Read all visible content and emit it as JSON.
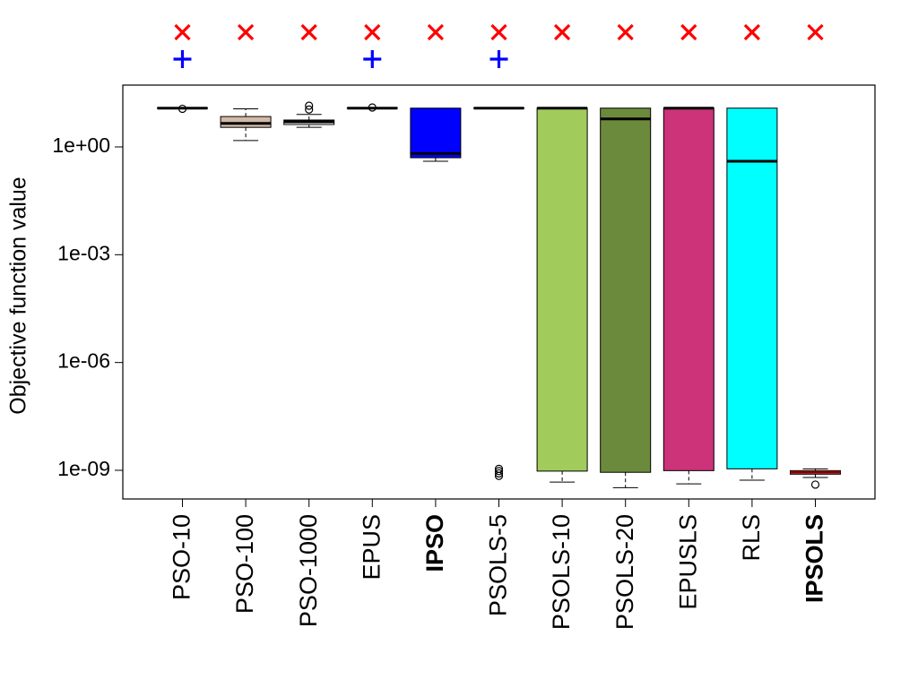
{
  "chart_data": {
    "type": "box",
    "ylabel": "Objective function value",
    "yscale": "log10",
    "y_ticks": [
      {
        "value": 1,
        "label": "1e+00"
      },
      {
        "value": 0.001,
        "label": "1e-03"
      },
      {
        "value": 1e-06,
        "label": "1e-06"
      },
      {
        "value": 1e-09,
        "label": "1e-09"
      }
    ],
    "ylim": [
      2e-10,
      50
    ],
    "grid": false,
    "categories": [
      {
        "name": "PSO-10",
        "bold": false,
        "color": "#ffffff",
        "whisker_low": 12,
        "q1": 12,
        "median": 12,
        "q3": 12,
        "whisker_high": 12,
        "outliers": [
          11.5
        ],
        "markers": [
          "x",
          "+"
        ]
      },
      {
        "name": "PSO-100",
        "bold": false,
        "color": "#d2b9a8",
        "whisker_low": 1.5,
        "q1": 3.5,
        "median": 4.5,
        "q3": 7,
        "whisker_high": 11.5,
        "outliers": [],
        "markers": [
          "x"
        ]
      },
      {
        "name": "PSO-1000",
        "bold": false,
        "color": "#ffffff",
        "whisker_low": 3.5,
        "q1": 4.2,
        "median": 5,
        "q3": 5.6,
        "whisker_high": 8,
        "outliers": [
          11,
          14
        ],
        "markers": [
          "x"
        ]
      },
      {
        "name": "EPUS",
        "bold": false,
        "color": "#ffffff",
        "whisker_low": 12,
        "q1": 12,
        "median": 12,
        "q3": 12,
        "whisker_high": 12,
        "outliers": [
          12.5
        ],
        "markers": [
          "x",
          "+"
        ]
      },
      {
        "name": "IPSO",
        "bold": true,
        "color": "#0000ff",
        "whisker_low": 0.4,
        "q1": 0.5,
        "median": 0.65,
        "q3": 12,
        "whisker_high": 12,
        "outliers": [],
        "markers": [
          "x"
        ]
      },
      {
        "name": "PSOLS-5",
        "bold": false,
        "color": "#ffffff",
        "whisker_low": 12,
        "q1": 12,
        "median": 12,
        "q3": 12,
        "whisker_high": 12,
        "outliers": [
          1.1e-09,
          9.5e-10,
          8.2e-10,
          7e-10
        ],
        "markers": [
          "x",
          "+"
        ]
      },
      {
        "name": "PSOLS-10",
        "bold": false,
        "color": "#a1cc5c",
        "whisker_low": 4.7e-10,
        "q1": 9.5e-10,
        "median": 12,
        "q3": 12,
        "whisker_high": 12,
        "outliers": [],
        "markers": [
          "x"
        ]
      },
      {
        "name": "PSOLS-20",
        "bold": false,
        "color": "#6c8a3c",
        "whisker_low": 3.3e-10,
        "q1": 8.8e-10,
        "median": 6,
        "q3": 12,
        "whisker_high": 12,
        "outliers": [],
        "markers": [
          "x"
        ]
      },
      {
        "name": "EPUSLS",
        "bold": false,
        "color": "#cc3378",
        "whisker_low": 4.2e-10,
        "q1": 9.8e-10,
        "median": 12,
        "q3": 12,
        "whisker_high": 12,
        "outliers": [],
        "markers": [
          "x"
        ]
      },
      {
        "name": "RLS",
        "bold": false,
        "color": "#00ffff",
        "whisker_low": 5.3e-10,
        "q1": 1.1e-09,
        "median": 0.4,
        "q3": 12,
        "whisker_high": 12,
        "outliers": [],
        "markers": [
          "x"
        ]
      },
      {
        "name": "IPSOLS",
        "bold": true,
        "color": "#ffffff",
        "median_color": "#8b0000",
        "whisker_low": 6.3e-10,
        "q1": 7.8e-10,
        "median": 8.8e-10,
        "q3": 9.8e-10,
        "whisker_high": 1.1e-09,
        "outliers": [
          4e-10
        ],
        "markers": [
          "x"
        ]
      }
    ],
    "marker_colors": {
      "x": "#ff0000",
      "+": "#0000ff"
    }
  }
}
